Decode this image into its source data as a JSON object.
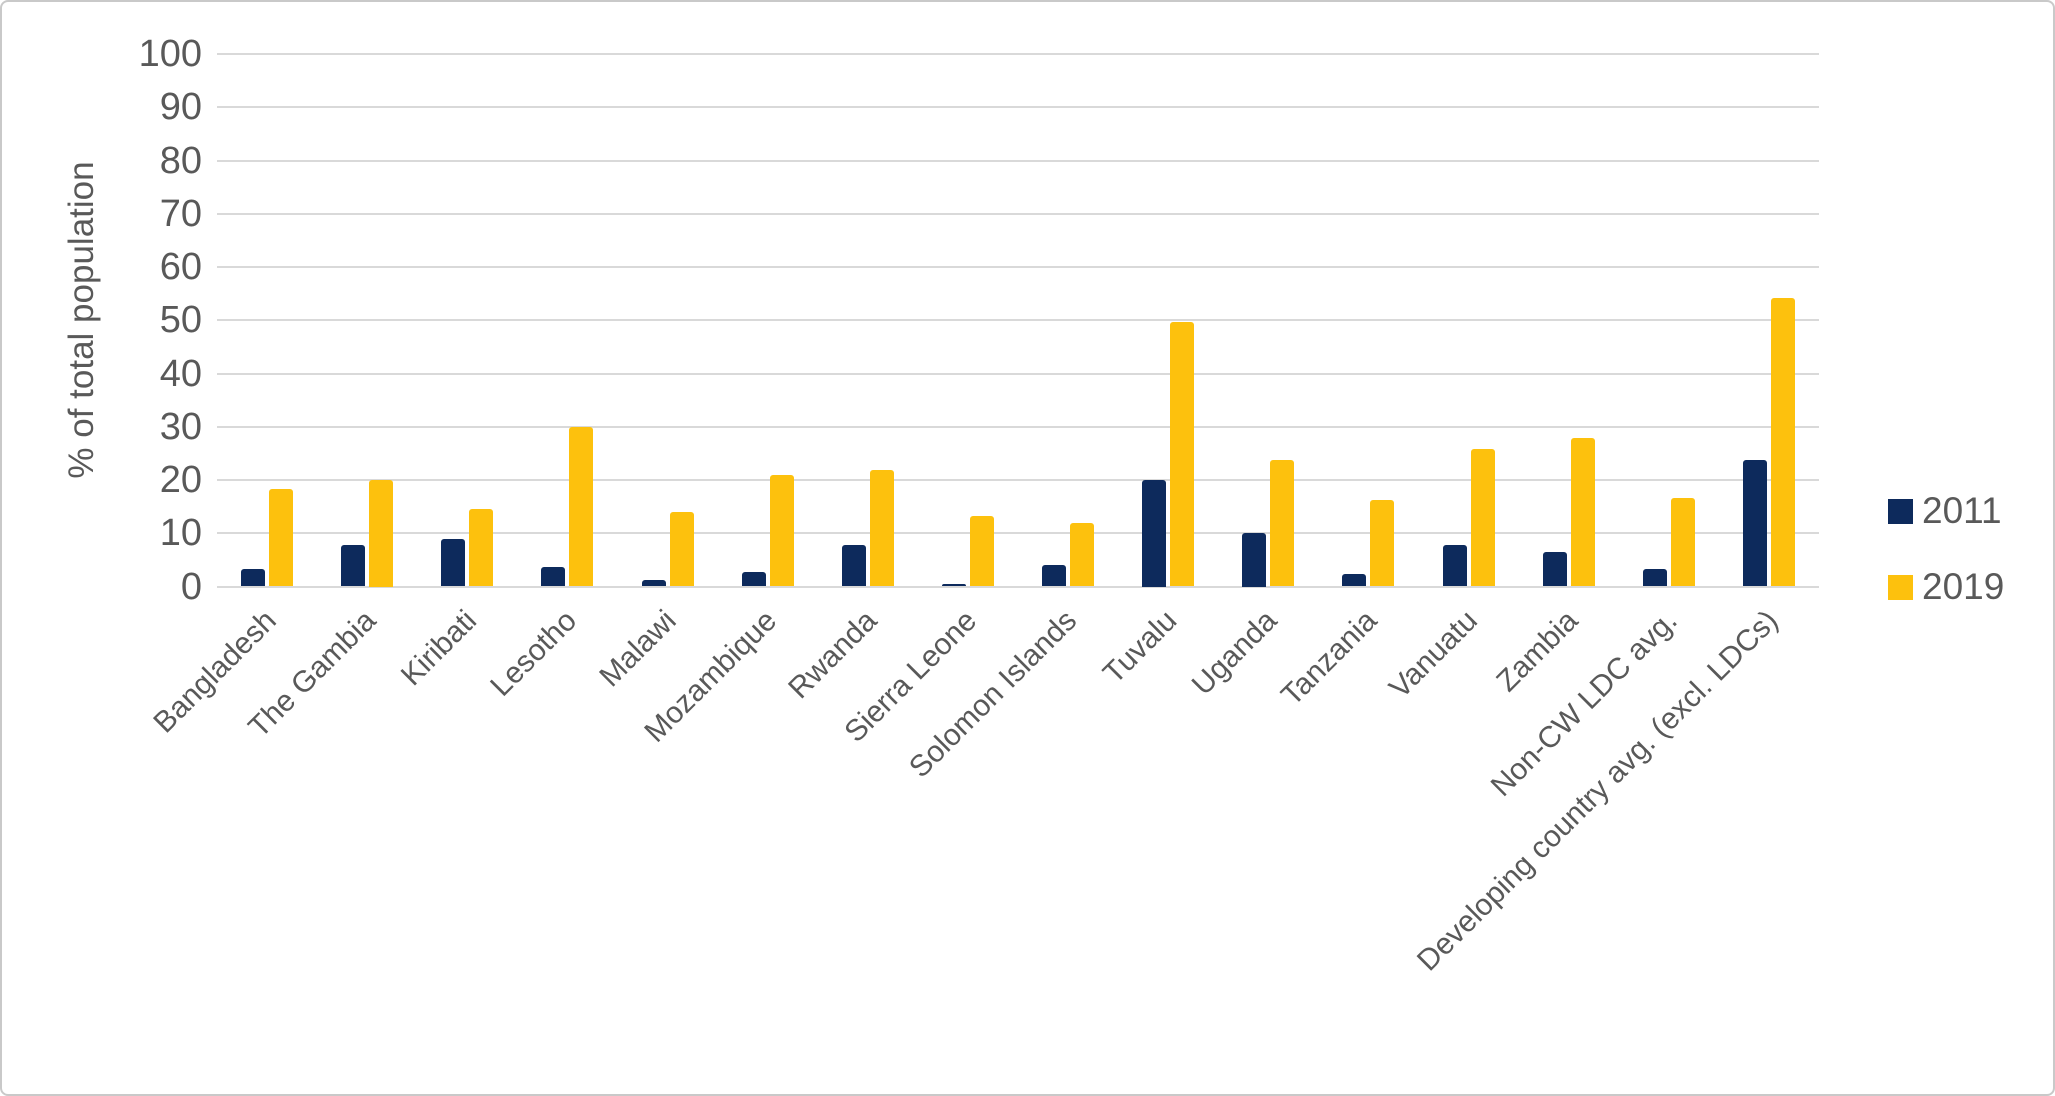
{
  "chart_data": {
    "type": "bar",
    "title": "",
    "ylabel": "% of total population",
    "xlabel": "",
    "ylim": [
      0,
      100
    ],
    "yticks": [
      0,
      10,
      20,
      30,
      40,
      50,
      60,
      70,
      80,
      90,
      100
    ],
    "grid": "horizontal",
    "legend_position": "right",
    "gridline_color": "#d9d9d9",
    "text_color": "#595959",
    "categories": [
      "Bangladesh",
      "The Gambia",
      "Kiribati",
      "Lesotho",
      "Malawi",
      "Mozambique",
      "Rwanda",
      "Sierra Leone",
      "Solomon Islands",
      "Tuvalu",
      "Uganda",
      "Tanzania",
      "Vanuatu",
      "Zambia",
      "Non-CW LDC avg.",
      "Developing country avg. (excl. LDCs)"
    ],
    "series": [
      {
        "name": "2011",
        "color": "#0d2a5c",
        "values": [
          3.2,
          7.8,
          8.9,
          3.7,
          1.2,
          2.7,
          7.8,
          0.4,
          4.1,
          20.0,
          10.0,
          2.4,
          7.7,
          6.4,
          3.2,
          23.8
        ]
      },
      {
        "name": "2019",
        "color": "#fdc10d",
        "values": [
          18.3,
          20.0,
          14.5,
          29.9,
          13.9,
          20.9,
          21.9,
          13.3,
          12.0,
          49.6,
          23.8,
          16.2,
          25.9,
          27.9,
          16.7,
          54.2
        ]
      }
    ]
  }
}
